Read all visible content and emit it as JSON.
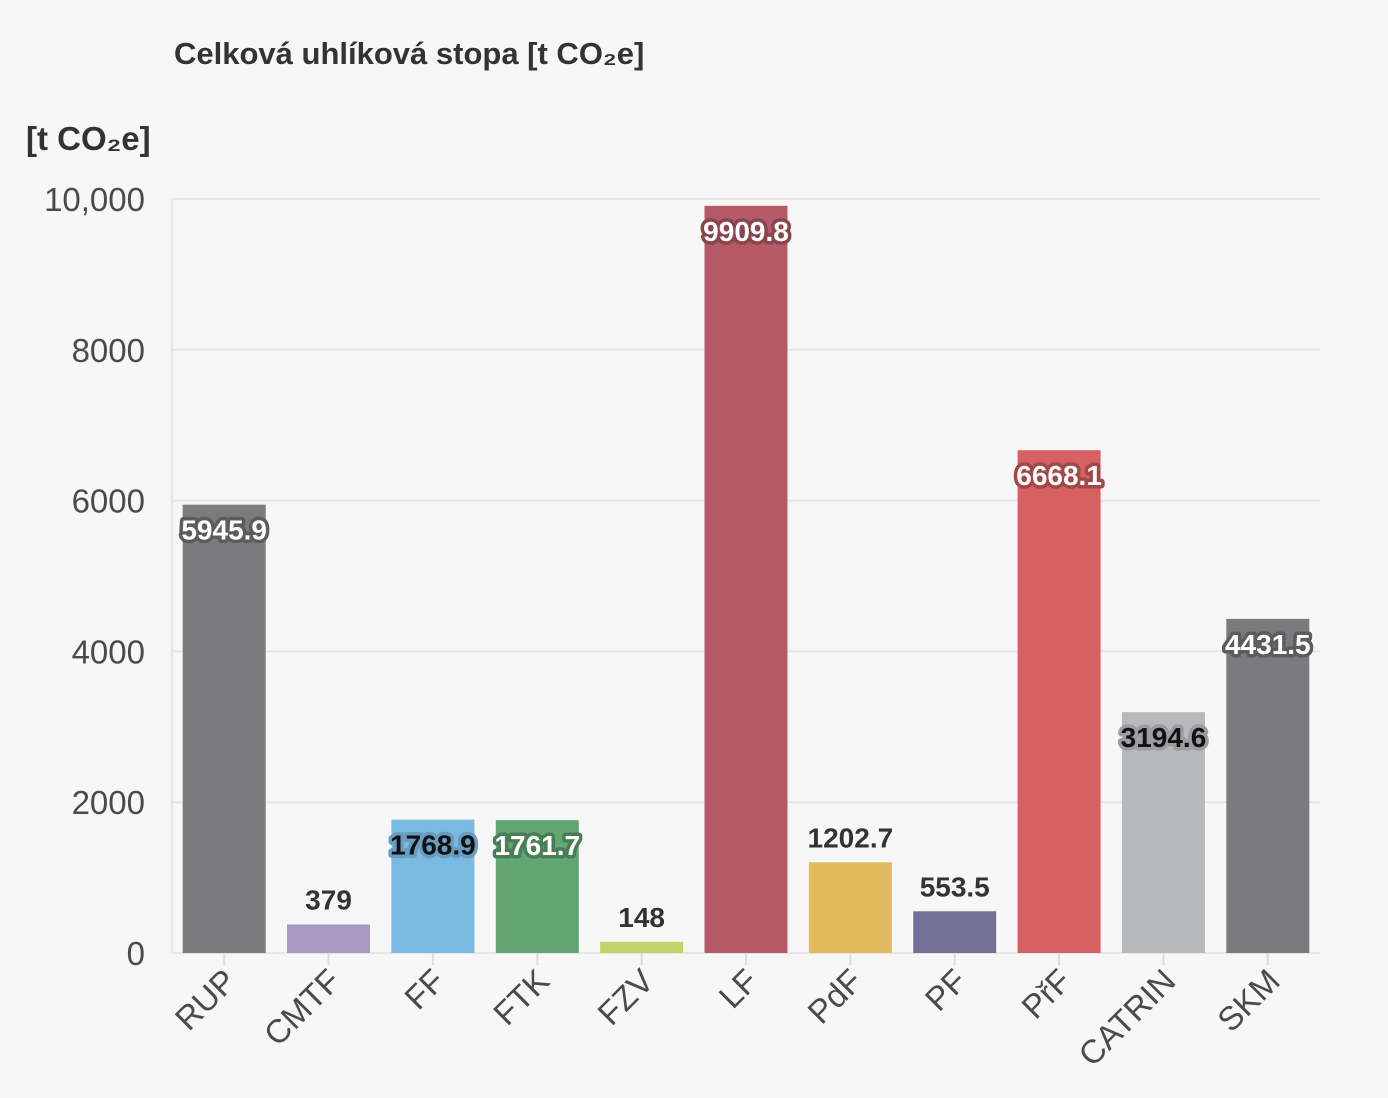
{
  "chart_data": {
    "type": "bar",
    "title": "Celková uhlíková stopa [t CO₂e]",
    "ylabel": "[t CO₂e]",
    "xlabel": "",
    "ylim": [
      0,
      10000
    ],
    "yticks": [
      0,
      2000,
      4000,
      6000,
      8000,
      10000
    ],
    "ytick_labels": [
      "0",
      "2000",
      "4000",
      "6000",
      "8000",
      "10,000"
    ],
    "grid": true,
    "categories": [
      "RUP",
      "CMTF",
      "FF",
      "FTK",
      "FZV",
      "LF",
      "PdF",
      "PF",
      "PřF",
      "CATRIN",
      "SKM"
    ],
    "values": [
      5945.9,
      379,
      1768.9,
      1761.7,
      148,
      9909.8,
      1202.7,
      553.5,
      6668.1,
      3194.6,
      4431.5
    ],
    "value_labels": [
      "5945.9",
      "379",
      "1768.9",
      "1761.7",
      "148",
      "9909.8",
      "1202.7",
      "553.5",
      "6668.1",
      "3194.6",
      "4431.5"
    ],
    "colors": [
      "#7b7b7d",
      "#a998c2",
      "#7ab9e2",
      "#61a673",
      "#c3d36b",
      "#b65a68",
      "#e2bb5e",
      "#747095",
      "#d66062",
      "#b7b9bc",
      "#7b7b7d"
    ]
  }
}
